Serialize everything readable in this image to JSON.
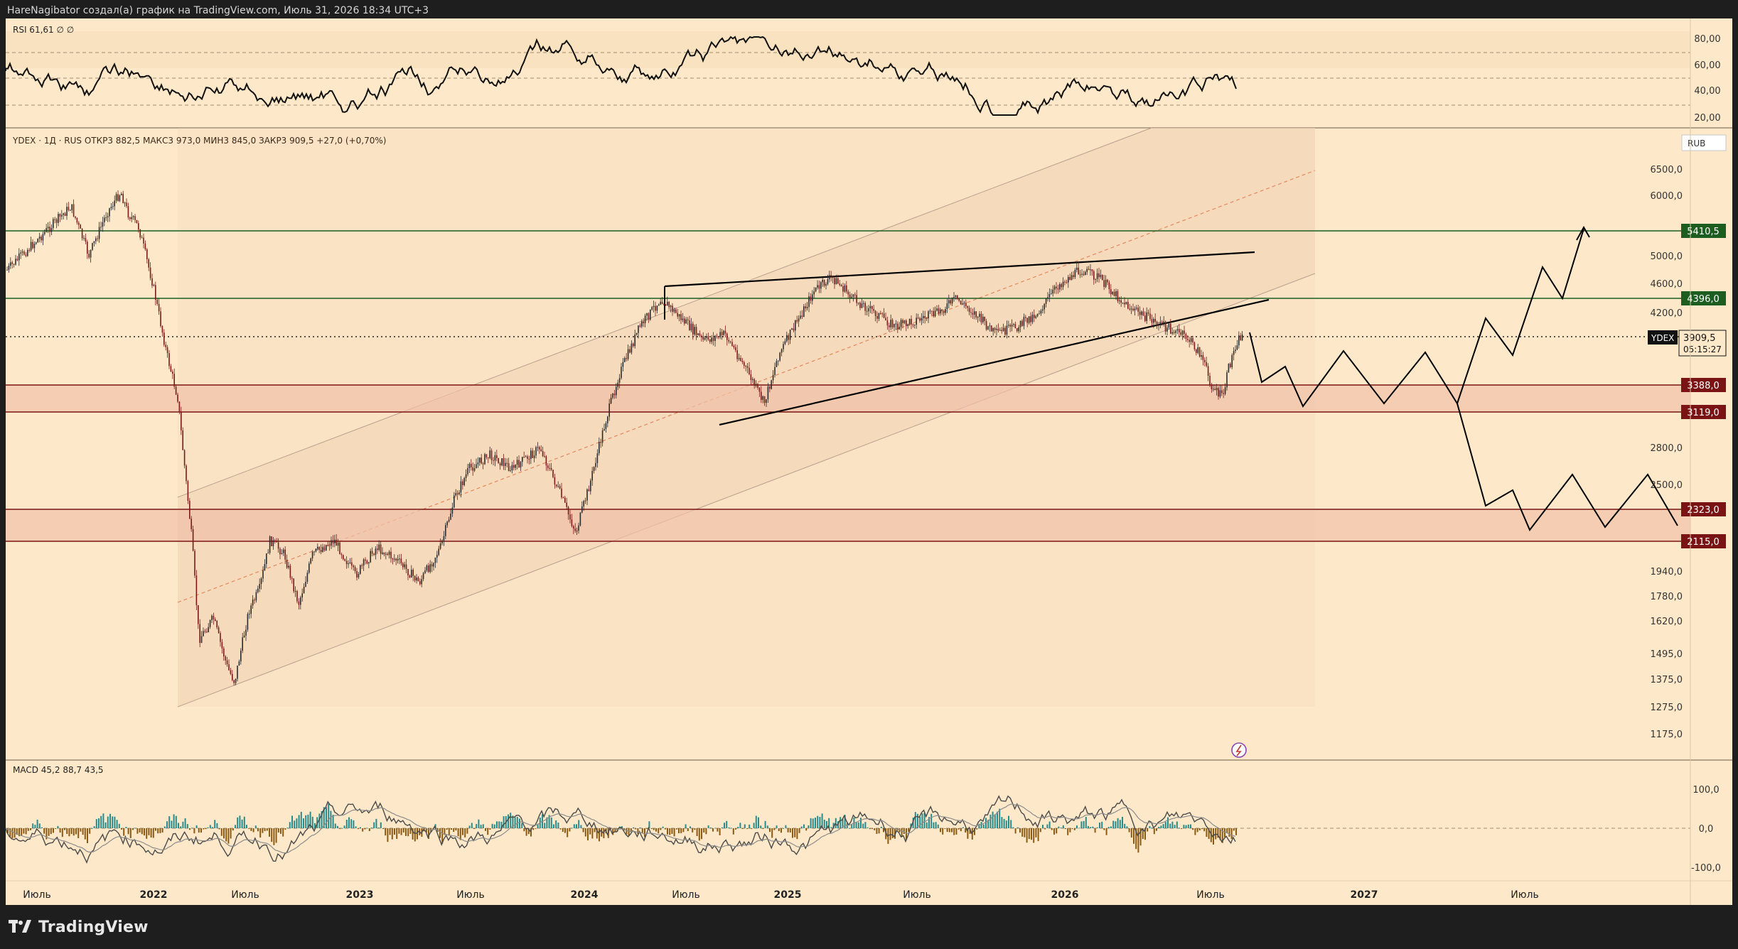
{
  "header": {
    "caption": "HareNagibator создал(а) график на TradingView.com, Июль 31, 2026 18:34 UTC+3"
  },
  "brand": {
    "label": "TradingView",
    "icon": "tradingview-logo-icon"
  },
  "rsi": {
    "title": "RSI 61,61 ∅ ∅",
    "ticks": [
      "80,00",
      "60,00",
      "40,00",
      "20,00"
    ]
  },
  "main": {
    "symbol_line": "YDEX · 1Д · RUS  ОТКР3 882,5  МАКС3 973,0  МИН3 845,0  ЗАКР3 909,5  +27,0 (+0,70%)",
    "currency": "RUB",
    "price_ticks": [
      "6500,0",
      "6000,0",
      "5000,0",
      "4600,0",
      "4200,0",
      "2800,0",
      "2500,0",
      "1940,0",
      "1780,0",
      "1620,0",
      "1495,0",
      "1375,0",
      "1275,0",
      "1175,0"
    ],
    "levels": [
      {
        "label": "5410,5",
        "color": "#1b5e20"
      },
      {
        "label": "4396,0",
        "color": "#1b5e20"
      },
      {
        "label": "3388,0",
        "color": "#7a1414"
      },
      {
        "label": "3119,0",
        "color": "#7a1414"
      },
      {
        "label": "2323,0",
        "color": "#7a1414"
      },
      {
        "label": "2115,0",
        "color": "#7a1414"
      }
    ],
    "last_price": {
      "symbol": "YDEX",
      "price": "3909,5",
      "countdown": "05:15:27"
    }
  },
  "macd": {
    "title": "MACD 45,2 88,7 43,5",
    "ticks": [
      "100,0",
      "0,0",
      "-100,0"
    ]
  },
  "time_axis": {
    "labels": [
      "Июль",
      "2022",
      "Июль",
      "2023",
      "Июль",
      "2024",
      "Июль",
      "2025",
      "Июль",
      "2026",
      "Июль",
      "2027",
      "Июль"
    ]
  },
  "colors": {
    "background": "#fde9c9",
    "price_line": "#111111",
    "green_level": "#1b5e20",
    "red_level": "#8b1a1a",
    "macd_up": "#2a8a8a",
    "macd_down": "#8a5a14"
  }
}
